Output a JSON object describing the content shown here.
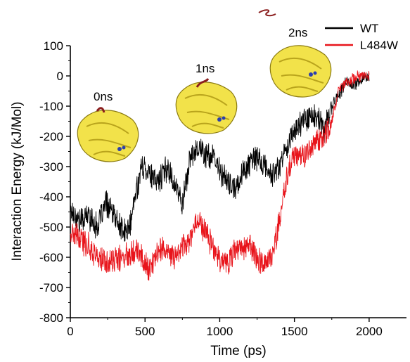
{
  "chart_data": {
    "type": "line",
    "title": "",
    "xlabel": "Time (ps)",
    "ylabel": "Interaction Energy (kJ/Mol)",
    "xlim": [
      0,
      2250
    ],
    "ylim": [
      -800,
      100
    ],
    "xticks": [
      0,
      500,
      1000,
      1500,
      2000
    ],
    "yticks": [
      100,
      0,
      -100,
      -200,
      -300,
      -400,
      -500,
      -600,
      -700,
      -800
    ],
    "grid": false,
    "legend": "top-right",
    "series": [
      {
        "name": "WT",
        "color": "#000000",
        "x": [
          0,
          60,
          120,
          180,
          240,
          300,
          360,
          400,
          440,
          480,
          520,
          560,
          600,
          650,
          700,
          750,
          800,
          850,
          900,
          950,
          1000,
          1050,
          1100,
          1150,
          1200,
          1250,
          1300,
          1350,
          1400,
          1450,
          1500,
          1550,
          1600,
          1650,
          1700,
          1750,
          1800,
          1850,
          1900,
          1950,
          2000
        ],
        "y": [
          -440,
          -480,
          -460,
          -500,
          -420,
          -470,
          -520,
          -500,
          -380,
          -300,
          -310,
          -350,
          -340,
          -300,
          -360,
          -420,
          -280,
          -230,
          -260,
          -270,
          -310,
          -350,
          -380,
          -320,
          -290,
          -270,
          -300,
          -330,
          -300,
          -230,
          -180,
          -150,
          -130,
          -140,
          -180,
          -100,
          -60,
          -20,
          -30,
          -10,
          -5
        ]
      },
      {
        "name": "L484W",
        "color": "#e8141b",
        "x": [
          0,
          60,
          120,
          180,
          240,
          300,
          360,
          400,
          440,
          480,
          520,
          560,
          600,
          650,
          700,
          750,
          800,
          850,
          900,
          950,
          1000,
          1050,
          1100,
          1150,
          1200,
          1250,
          1300,
          1350,
          1400,
          1450,
          1500,
          1550,
          1600,
          1650,
          1700,
          1750,
          1800,
          1850,
          1900,
          1950,
          2000
        ],
        "y": [
          -520,
          -540,
          -560,
          -600,
          -620,
          -610,
          -600,
          -580,
          -570,
          -600,
          -640,
          -620,
          -560,
          -590,
          -600,
          -560,
          -540,
          -470,
          -510,
          -560,
          -600,
          -620,
          -580,
          -570,
          -560,
          -600,
          -620,
          -600,
          -480,
          -330,
          -260,
          -270,
          -250,
          -210,
          -200,
          -150,
          -40,
          -20,
          -10,
          0,
          0
        ]
      }
    ],
    "annotations": [
      "0ns",
      "1ns",
      "2ns"
    ]
  }
}
